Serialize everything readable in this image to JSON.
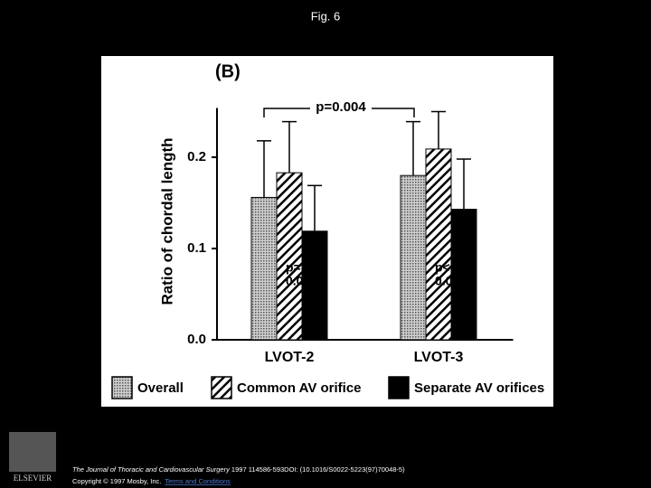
{
  "page_title": "Fig. 6",
  "chart_data": {
    "type": "bar",
    "panel_label": "(B)",
    "y_label": "Ratio of chordal length",
    "categories": [
      "LVOT-2",
      "LVOT-3"
    ],
    "series": [
      {
        "name": "Overall",
        "color": "#9a9a9a",
        "fill_style": "dots",
        "values": [
          0.156,
          0.18
        ],
        "errors": [
          0.062,
          0.059
        ]
      },
      {
        "name": "Common AV orifice",
        "color": "#ffffff",
        "fill_style": "hatch",
        "values": [
          0.183,
          0.209
        ],
        "errors": [
          0.056,
          0.041
        ]
      },
      {
        "name": "Separate AV orifices",
        "color": "#000000",
        "fill_style": "solid",
        "values": [
          0.119,
          0.143
        ],
        "errors": [
          0.05,
          0.055
        ]
      }
    ],
    "ylim": [
      0,
      0.25
    ],
    "yticks": [
      {
        "value": 0,
        "label": "0.0"
      },
      0.1,
      0.2
    ],
    "annotations": [
      "p=0.004",
      "p=",
      "0.041",
      "p<",
      "0.002"
    ]
  },
  "footer": {
    "citation_journal": "The Journal of Thoracic and Cardiovascular Surgery",
    "citation_rest": " 1997 114586-593DOI: (10.1016/S0022-5223(97)70048-5)",
    "copyright": "Copyright © 1997 Mosby, Inc.",
    "terms_link": "Terms and Conditions",
    "logo_text": "ELSEVIER"
  }
}
